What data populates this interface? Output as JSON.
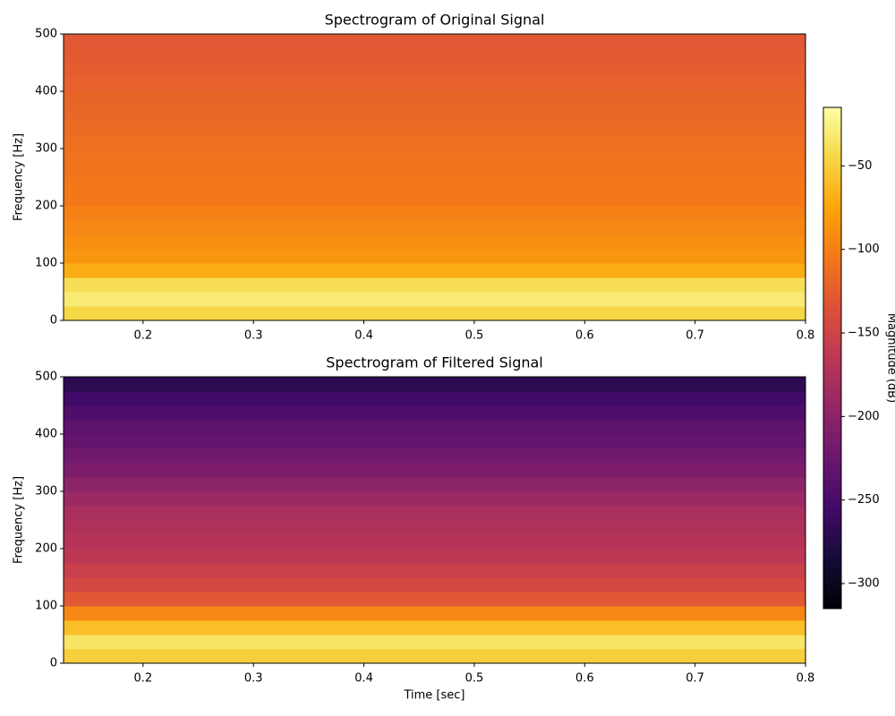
{
  "chart_data": [
    {
      "type": "heatmap",
      "title": "Spectrogram of Original Signal",
      "y_label": "Frequency [Hz]",
      "xlim": [
        0.128,
        0.8
      ],
      "xticks": [
        0.2,
        0.3,
        0.4,
        0.5,
        0.6,
        0.7,
        0.8
      ],
      "ylim": [
        0,
        500
      ],
      "yticks": [
        0,
        100,
        200,
        300,
        400,
        500
      ],
      "ybins": [
        0,
        25,
        50,
        75,
        100,
        125,
        150,
        175,
        200,
        225,
        250,
        275,
        300,
        325,
        350,
        375,
        400,
        425,
        450,
        475,
        500
      ],
      "values": [
        -45,
        -30,
        -40,
        -70,
        -85,
        -90,
        -95,
        -100,
        -105,
        -105,
        -108,
        -110,
        -112,
        -115,
        -118,
        -120,
        -122,
        -125,
        -128,
        -130
      ],
      "colormap": "inferno"
    },
    {
      "type": "heatmap",
      "title": "Spectrogram of Filtered Signal",
      "y_label": "Frequency [Hz]",
      "x_label": "Time [sec]",
      "xlim": [
        0.128,
        0.8
      ],
      "xticks": [
        0.2,
        0.3,
        0.4,
        0.5,
        0.6,
        0.7,
        0.8
      ],
      "ylim": [
        0,
        500
      ],
      "yticks": [
        0,
        100,
        200,
        300,
        400,
        500
      ],
      "ybins": [
        0,
        25,
        50,
        75,
        100,
        125,
        150,
        175,
        200,
        225,
        250,
        275,
        300,
        325,
        350,
        375,
        400,
        425,
        450,
        475,
        500
      ],
      "values": [
        -50,
        -35,
        -60,
        -95,
        -130,
        -145,
        -155,
        -165,
        -170,
        -175,
        -180,
        -190,
        -200,
        -210,
        -220,
        -230,
        -235,
        -245,
        -255,
        -270
      ],
      "colormap": "inferno"
    }
  ],
  "colorbar": {
    "label": "Magnitude (dB)",
    "clim": [
      -315,
      -15
    ],
    "ticks": [
      {
        "value": -50,
        "label": "−50"
      },
      {
        "value": -100,
        "label": "−100"
      },
      {
        "value": -150,
        "label": "−150"
      },
      {
        "value": -200,
        "label": "−200"
      },
      {
        "value": -250,
        "label": "−250"
      },
      {
        "value": -300,
        "label": "−300"
      }
    ]
  }
}
